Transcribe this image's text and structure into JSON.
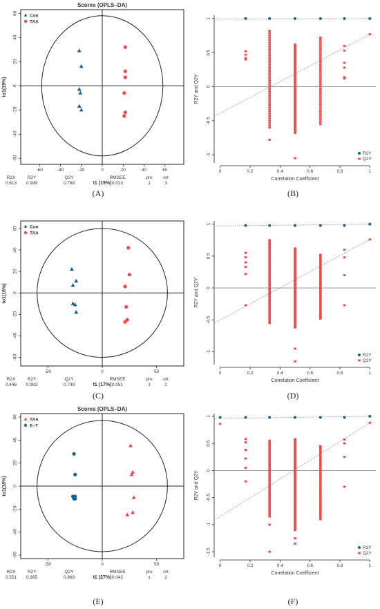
{
  "colors": {
    "con": "#1a6191",
    "taa": "#f04848",
    "text": "#333333",
    "line": "#222222",
    "guide": "#888888"
  },
  "figure_labels": [
    "(A)",
    "(B)",
    "(C)",
    "(D)",
    "(E)",
    "(F)"
  ],
  "chart_data": [
    {
      "id": "A",
      "type": "scatter",
      "title": "Scores (OPLS–DA)",
      "xlabel": "t1 (19%)",
      "ylabel": "to1(19%)",
      "xlim": [
        -78,
        78
      ],
      "ylim": [
        -65,
        63
      ],
      "xticks": [
        -60,
        -40,
        -20,
        0,
        20,
        40,
        60
      ],
      "yticks": [
        -60,
        -40,
        -20,
        0,
        20,
        40,
        60
      ],
      "ellipse": {
        "rx": 58,
        "ry": 58
      },
      "series": [
        {
          "name": "Con",
          "marker": "triangle",
          "color": "#1a6191",
          "points": [
            [
              -22,
              29
            ],
            [
              -20,
              16
            ],
            [
              -22,
              -3
            ],
            [
              -21,
              -6
            ],
            [
              -22,
              -17
            ],
            [
              -20,
              -20
            ]
          ]
        },
        {
          "name": "TAA",
          "marker": "circle",
          "color": "#f04848",
          "points": [
            [
              22,
              32
            ],
            [
              22,
              12
            ],
            [
              22,
              7
            ],
            [
              21,
              -6
            ],
            [
              22,
              -22
            ],
            [
              21,
              -25
            ]
          ]
        }
      ],
      "stats": {
        "headers": [
          "R2X",
          "R2Y",
          "Q2Y",
          "RMSEE",
          "pre",
          "ort"
        ],
        "values": [
          "0.613",
          "0.999",
          "0.768",
          "0.023",
          "1",
          "3"
        ]
      }
    },
    {
      "id": "B",
      "type": "scatter",
      "title": "",
      "xlabel": "Correlation Coefficient",
      "ylabel": "R2Y and Q2Y",
      "xlim": [
        -0.04,
        1.04
      ],
      "ylim": [
        -1.12,
        1.05
      ],
      "xticks": [
        0.0,
        0.2,
        0.4,
        0.6,
        0.8,
        1.0
      ],
      "yticks": [
        -1.0,
        -0.5,
        0.0,
        0.5,
        1.0
      ],
      "r2y_columns": [
        0.17,
        0.33,
        0.5,
        0.67,
        0.83,
        1.0
      ],
      "r2y_value": 1.0,
      "r2y_line": [
        [
          0,
          0.995
        ],
        [
          1,
          1.0
        ]
      ],
      "q2y_line": [
        [
          0,
          -0.39
        ],
        [
          1,
          0.77
        ]
      ],
      "q2y_columns": [
        {
          "x": 0.17,
          "values": [
            0.52,
            0.47,
            0.42,
            0.4
          ]
        },
        {
          "x": 0.33,
          "min": -0.6,
          "max": 0.82,
          "count": 44,
          "outliers": [
            -0.78
          ]
        },
        {
          "x": 0.5,
          "min": -0.68,
          "max": 0.62,
          "count": 58,
          "outliers": [
            -1.05
          ]
        },
        {
          "x": 0.67,
          "min": -0.55,
          "max": 0.72,
          "count": 40
        },
        {
          "x": 0.83,
          "values": [
            0.6,
            0.53,
            0.35,
            0.28,
            0.14,
            0.12
          ]
        },
        {
          "x": 1.0,
          "values": [
            0.77
          ]
        }
      ],
      "legend": [
        {
          "name": "R2Y",
          "marker": "circle",
          "color": "#1a6191"
        },
        {
          "name": "Q2Y",
          "marker": "square",
          "color": "#f04848"
        }
      ]
    },
    {
      "id": "C",
      "type": "scatter",
      "title": "",
      "xlabel": "t1 (17%)",
      "ylabel": "to1(16%)",
      "xlim": [
        -75,
        75
      ],
      "ylim": [
        -68,
        67
      ],
      "xticks": [
        -50,
        0,
        50
      ],
      "yticks": [
        -60,
        -40,
        -20,
        0,
        20,
        40,
        60
      ],
      "ellipse": {
        "rx": 60,
        "ry": 60
      },
      "series": [
        {
          "name": "Con",
          "marker": "triangle",
          "color": "#1a6191",
          "points": [
            [
              -28,
              22
            ],
            [
              -24,
              11
            ],
            [
              -27,
              7
            ],
            [
              -27,
              -10
            ],
            [
              -25,
              -11
            ],
            [
              -24,
              -18
            ]
          ]
        },
        {
          "name": "TAA",
          "marker": "circle",
          "color": "#f04848",
          "points": [
            [
              24,
              42
            ],
            [
              25,
              17
            ],
            [
              21,
              6
            ],
            [
              22,
              -13
            ],
            [
              23,
              -25
            ],
            [
              21,
              -27
            ]
          ]
        }
      ],
      "stats": {
        "headers": [
          "R2X",
          "R2Y",
          "Q2Y",
          "RMSEE",
          "pre",
          "ort"
        ],
        "values": [
          "0.446",
          "0.993",
          "0.749",
          "0.051",
          "1",
          "2"
        ]
      }
    },
    {
      "id": "D",
      "type": "scatter",
      "title": "",
      "xlabel": "Correlation Coefficient",
      "ylabel": "R2Y and Q2Y",
      "xlim": [
        -0.04,
        1.04
      ],
      "ylim": [
        -1.2,
        1.05
      ],
      "xticks": [
        0.0,
        0.2,
        0.4,
        0.6,
        0.8,
        1.0
      ],
      "yticks": [
        -1.0,
        -0.5,
        0.0,
        0.5,
        1.0
      ],
      "r2y_columns": [
        0.17,
        0.33,
        0.5,
        0.67,
        0.83,
        1.0
      ],
      "r2y_value": 0.98,
      "r2y_line": [
        [
          0,
          0.97
        ],
        [
          1,
          1.0
        ]
      ],
      "q2y_line": [
        [
          0,
          -0.5
        ],
        [
          1,
          0.76
        ]
      ],
      "q2y_columns": [
        {
          "x": 0.17,
          "values": [
            0.55,
            0.48,
            0.4,
            0.33,
            0.22,
            -0.27
          ]
        },
        {
          "x": 0.33,
          "min": -0.55,
          "max": 0.75,
          "count": 44
        },
        {
          "x": 0.5,
          "min": -0.62,
          "max": 0.62,
          "count": 58,
          "outliers": [
            -0.95,
            -1.15
          ]
        },
        {
          "x": 0.67,
          "min": -0.48,
          "max": 0.52,
          "count": 40
        },
        {
          "x": 0.83,
          "values": [
            0.6,
            0.48,
            0.2,
            -0.27
          ]
        },
        {
          "x": 1.0,
          "values": [
            0.76
          ]
        }
      ],
      "legend": [
        {
          "name": "R2Y",
          "marker": "circle",
          "color": "#1a6191"
        },
        {
          "name": "Q2Y",
          "marker": "square",
          "color": "#f04848"
        }
      ]
    },
    {
      "id": "E",
      "type": "scatter",
      "title": "Scores (OPLS–DA)",
      "xlabel": "t1 (27%)",
      "ylabel": "to1(18%)",
      "xlim": [
        -75,
        75
      ],
      "ylim": [
        -63,
        63
      ],
      "xticks": [
        -50,
        0,
        50
      ],
      "yticks": [
        -60,
        -40,
        -20,
        0,
        20,
        40,
        60
      ],
      "ellipse": {
        "rx": 60,
        "ry": 57
      },
      "series": [
        {
          "name": "TAA",
          "marker": "triangle",
          "color": "#f04848",
          "points": [
            [
              26,
              35
            ],
            [
              28,
              12
            ],
            [
              27,
              10
            ],
            [
              29,
              -10
            ],
            [
              28,
              -23
            ],
            [
              23,
              -25
            ]
          ]
        },
        {
          "name": "E–T",
          "marker": "circle",
          "color": "#1a6191",
          "points": [
            [
              -26,
              28
            ],
            [
              -25,
              10
            ],
            [
              -27,
              -9
            ],
            [
              -25,
              -9
            ],
            [
              -26,
              -11
            ],
            [
              -25,
              -11
            ]
          ]
        }
      ],
      "stats": {
        "headers": [
          "R2X",
          "R2Y",
          "Q2Y",
          "RMSEE",
          "pre",
          "ort"
        ],
        "values": [
          "0.551",
          "0.995",
          "0.869",
          "0.042",
          "1",
          "2"
        ]
      }
    },
    {
      "id": "F",
      "type": "scatter",
      "title": "",
      "xlabel": "Correlation Coefficient",
      "ylabel": "R2Y and Q2Y",
      "xlim": [
        -0.04,
        1.04
      ],
      "ylim": [
        -1.6,
        1.05
      ],
      "xticks": [
        0.0,
        0.2,
        0.4,
        0.6,
        0.8,
        1.0
      ],
      "yticks": [
        -1.5,
        -1.0,
        -0.5,
        0.0,
        0.5,
        1.0
      ],
      "r2y_columns": [
        0.0,
        0.17,
        0.33,
        0.5,
        0.67,
        0.83,
        1.0
      ],
      "r2y_value": 0.98,
      "r2y_line": [
        [
          0,
          0.96
        ],
        [
          1,
          1.0
        ]
      ],
      "q2y_line": [
        [
          0,
          -0.85
        ],
        [
          1,
          0.88
        ]
      ],
      "q2y_columns": [
        {
          "x": 0.0,
          "values": [
            0.86
          ]
        },
        {
          "x": 0.17,
          "values": [
            0.58,
            0.52,
            0.38,
            0.22,
            0.05,
            -0.2
          ]
        },
        {
          "x": 0.33,
          "min": -0.85,
          "max": 0.55,
          "count": 40,
          "outliers": [
            -1.0,
            -1.5
          ]
        },
        {
          "x": 0.5,
          "min": -1.1,
          "max": 0.58,
          "count": 58,
          "outliers": [
            -1.25,
            -1.35
          ]
        },
        {
          "x": 0.67,
          "min": -0.9,
          "max": 0.45,
          "count": 40
        },
        {
          "x": 0.83,
          "values": [
            0.57,
            0.5,
            0.25,
            -0.3
          ]
        },
        {
          "x": 1.0,
          "values": [
            0.88
          ]
        }
      ],
      "legend": [
        {
          "name": "R2Y",
          "marker": "circle",
          "color": "#1a6191"
        },
        {
          "name": "Q2Y",
          "marker": "square",
          "color": "#f04848"
        }
      ]
    }
  ]
}
